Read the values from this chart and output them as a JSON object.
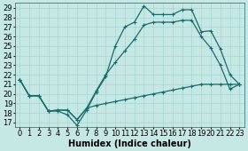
{
  "xlabel": "Humidex (Indice chaleur)",
  "bg_color": "#c5e8e5",
  "line_color": "#1a6b6b",
  "grid_color": "#a8d4d0",
  "xlim": [
    -0.5,
    23.5
  ],
  "ylim": [
    16.5,
    29.5
  ],
  "xticks": [
    0,
    1,
    2,
    3,
    4,
    5,
    6,
    7,
    8,
    9,
    10,
    11,
    12,
    13,
    14,
    15,
    16,
    17,
    18,
    19,
    20,
    21,
    22,
    23
  ],
  "yticks": [
    17,
    18,
    19,
    20,
    21,
    22,
    23,
    24,
    25,
    26,
    27,
    28,
    29
  ],
  "line1_x": [
    0,
    1,
    2,
    3,
    4,
    5,
    6,
    7,
    8,
    9,
    10,
    11,
    12,
    13,
    14,
    15,
    16,
    17,
    18,
    19,
    20,
    21,
    22,
    23
  ],
  "line1_y": [
    21.5,
    19.8,
    19.8,
    18.2,
    18.2,
    17.8,
    16.7,
    18.3,
    20.2,
    21.8,
    25.0,
    27.0,
    27.5,
    29.2,
    28.3,
    28.3,
    28.3,
    28.8,
    28.8,
    26.5,
    26.6,
    24.7,
    22.0,
    21.0
  ],
  "line2_x": [
    0,
    1,
    2,
    3,
    4,
    5,
    6,
    7,
    8,
    9,
    10,
    11,
    12,
    13,
    14,
    15,
    16,
    17,
    18,
    19,
    20,
    21,
    22,
    23
  ],
  "line2_y": [
    21.5,
    19.8,
    19.8,
    18.2,
    18.3,
    18.3,
    17.3,
    18.5,
    20.3,
    22.0,
    23.3,
    24.5,
    25.7,
    27.2,
    27.5,
    27.5,
    27.5,
    27.7,
    27.7,
    26.0,
    24.8,
    23.0,
    20.5,
    21.0
  ],
  "line3_x": [
    0,
    1,
    2,
    3,
    4,
    5,
    6,
    7,
    8,
    9,
    10,
    11,
    12,
    13,
    14,
    15,
    16,
    17,
    18,
    19,
    20,
    21,
    22,
    23
  ],
  "line3_y": [
    21.5,
    19.8,
    19.8,
    18.2,
    18.3,
    18.3,
    17.3,
    18.5,
    18.8,
    19.0,
    19.2,
    19.4,
    19.6,
    19.8,
    20.0,
    20.2,
    20.4,
    20.6,
    20.8,
    21.0,
    21.0,
    21.0,
    21.0,
    21.0
  ],
  "markersize": 3,
  "linewidth": 0.9,
  "xlabel_fontsize": 7,
  "tick_fontsize": 6
}
